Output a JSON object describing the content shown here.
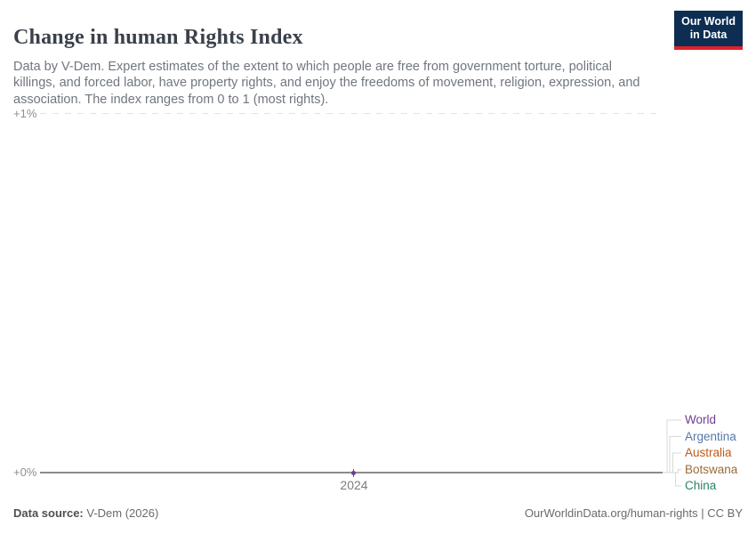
{
  "header": {
    "title": "Change in human Rights Index",
    "subtitle": "Data by V-Dem. Expert estimates of the extent to which people are free from government torture, political killings, and forced labor, have property rights, and enjoy the freedoms of movement, religion, expression, and association. The index ranges from 0 to 1 (most rights).",
    "logo": {
      "line1": "Our World",
      "line2": "in Data",
      "bg_color": "#0D2D53",
      "accent_color": "#E02128"
    }
  },
  "axis": {
    "y_top_label": "+1%",
    "y_bottom_label": "+0%",
    "x_tick_label": "2024"
  },
  "chart_data": {
    "type": "line",
    "title": "Change in human Rights Index",
    "x": [
      2024
    ],
    "x_ticks": [
      "2024"
    ],
    "y_tick_labels": [
      "+0%",
      "+1%"
    ],
    "ylim": [
      0,
      1
    ],
    "unit": "% change",
    "grid": "dashed gridline at +1%, solid baseline at +0%",
    "legend_position": "right",
    "series": [
      {
        "name": "World",
        "values": [
          0
        ],
        "color": "#6D3E91"
      },
      {
        "name": "Argentina",
        "values": [
          0
        ],
        "color": "#5578AA"
      },
      {
        "name": "Australia",
        "values": [
          0
        ],
        "color": "#BE5915"
      },
      {
        "name": "Botswana",
        "values": [
          0
        ],
        "color": "#996D39"
      },
      {
        "name": "China",
        "values": [
          0
        ],
        "color": "#2C8465"
      }
    ],
    "marker": {
      "series": "World",
      "x": 2024,
      "y": 0
    }
  },
  "footer": {
    "source_label": "Data source:",
    "source_value": " V-Dem (2026)",
    "link": "OurWorldinData.org/human-rights",
    "separator": " | ",
    "license": "CC BY"
  }
}
